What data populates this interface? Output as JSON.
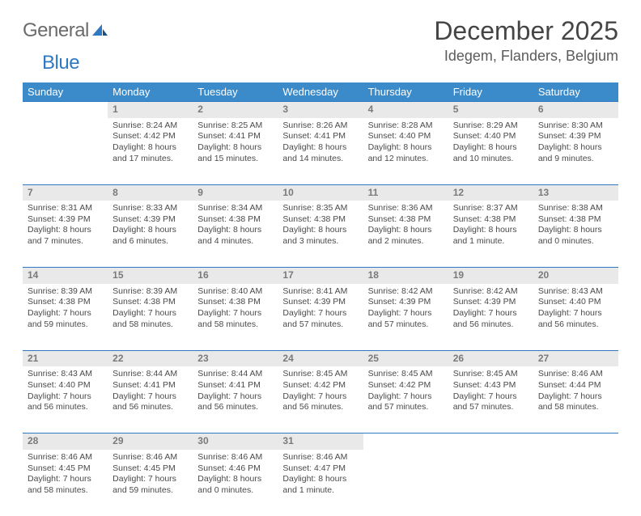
{
  "brand": {
    "word1": "General",
    "word2": "Blue",
    "accent": "#2f78c2"
  },
  "title": "December 2025",
  "location": "Idegem, Flanders, Belgium",
  "colors": {
    "header_bg": "#3b8aca",
    "header_text": "#ffffff",
    "row_border": "#2f78c2",
    "daynum_bg": "#e9e9e9",
    "daynum_text": "#7a7a7a",
    "body_text": "#4a4a4a"
  },
  "day_headers": [
    "Sunday",
    "Monday",
    "Tuesday",
    "Wednesday",
    "Thursday",
    "Friday",
    "Saturday"
  ],
  "weeks": [
    {
      "nums": [
        "",
        "1",
        "2",
        "3",
        "4",
        "5",
        "6"
      ],
      "cells": [
        null,
        {
          "sr": "Sunrise: 8:24 AM",
          "ss": "Sunset: 4:42 PM",
          "dl": "Daylight: 8 hours and 17 minutes."
        },
        {
          "sr": "Sunrise: 8:25 AM",
          "ss": "Sunset: 4:41 PM",
          "dl": "Daylight: 8 hours and 15 minutes."
        },
        {
          "sr": "Sunrise: 8:26 AM",
          "ss": "Sunset: 4:41 PM",
          "dl": "Daylight: 8 hours and 14 minutes."
        },
        {
          "sr": "Sunrise: 8:28 AM",
          "ss": "Sunset: 4:40 PM",
          "dl": "Daylight: 8 hours and 12 minutes."
        },
        {
          "sr": "Sunrise: 8:29 AM",
          "ss": "Sunset: 4:40 PM",
          "dl": "Daylight: 8 hours and 10 minutes."
        },
        {
          "sr": "Sunrise: 8:30 AM",
          "ss": "Sunset: 4:39 PM",
          "dl": "Daylight: 8 hours and 9 minutes."
        }
      ]
    },
    {
      "nums": [
        "7",
        "8",
        "9",
        "10",
        "11",
        "12",
        "13"
      ],
      "cells": [
        {
          "sr": "Sunrise: 8:31 AM",
          "ss": "Sunset: 4:39 PM",
          "dl": "Daylight: 8 hours and 7 minutes."
        },
        {
          "sr": "Sunrise: 8:33 AM",
          "ss": "Sunset: 4:39 PM",
          "dl": "Daylight: 8 hours and 6 minutes."
        },
        {
          "sr": "Sunrise: 8:34 AM",
          "ss": "Sunset: 4:38 PM",
          "dl": "Daylight: 8 hours and 4 minutes."
        },
        {
          "sr": "Sunrise: 8:35 AM",
          "ss": "Sunset: 4:38 PM",
          "dl": "Daylight: 8 hours and 3 minutes."
        },
        {
          "sr": "Sunrise: 8:36 AM",
          "ss": "Sunset: 4:38 PM",
          "dl": "Daylight: 8 hours and 2 minutes."
        },
        {
          "sr": "Sunrise: 8:37 AM",
          "ss": "Sunset: 4:38 PM",
          "dl": "Daylight: 8 hours and 1 minute."
        },
        {
          "sr": "Sunrise: 8:38 AM",
          "ss": "Sunset: 4:38 PM",
          "dl": "Daylight: 8 hours and 0 minutes."
        }
      ]
    },
    {
      "nums": [
        "14",
        "15",
        "16",
        "17",
        "18",
        "19",
        "20"
      ],
      "cells": [
        {
          "sr": "Sunrise: 8:39 AM",
          "ss": "Sunset: 4:38 PM",
          "dl": "Daylight: 7 hours and 59 minutes."
        },
        {
          "sr": "Sunrise: 8:39 AM",
          "ss": "Sunset: 4:38 PM",
          "dl": "Daylight: 7 hours and 58 minutes."
        },
        {
          "sr": "Sunrise: 8:40 AM",
          "ss": "Sunset: 4:38 PM",
          "dl": "Daylight: 7 hours and 58 minutes."
        },
        {
          "sr": "Sunrise: 8:41 AM",
          "ss": "Sunset: 4:39 PM",
          "dl": "Daylight: 7 hours and 57 minutes."
        },
        {
          "sr": "Sunrise: 8:42 AM",
          "ss": "Sunset: 4:39 PM",
          "dl": "Daylight: 7 hours and 57 minutes."
        },
        {
          "sr": "Sunrise: 8:42 AM",
          "ss": "Sunset: 4:39 PM",
          "dl": "Daylight: 7 hours and 56 minutes."
        },
        {
          "sr": "Sunrise: 8:43 AM",
          "ss": "Sunset: 4:40 PM",
          "dl": "Daylight: 7 hours and 56 minutes."
        }
      ]
    },
    {
      "nums": [
        "21",
        "22",
        "23",
        "24",
        "25",
        "26",
        "27"
      ],
      "cells": [
        {
          "sr": "Sunrise: 8:43 AM",
          "ss": "Sunset: 4:40 PM",
          "dl": "Daylight: 7 hours and 56 minutes."
        },
        {
          "sr": "Sunrise: 8:44 AM",
          "ss": "Sunset: 4:41 PM",
          "dl": "Daylight: 7 hours and 56 minutes."
        },
        {
          "sr": "Sunrise: 8:44 AM",
          "ss": "Sunset: 4:41 PM",
          "dl": "Daylight: 7 hours and 56 minutes."
        },
        {
          "sr": "Sunrise: 8:45 AM",
          "ss": "Sunset: 4:42 PM",
          "dl": "Daylight: 7 hours and 56 minutes."
        },
        {
          "sr": "Sunrise: 8:45 AM",
          "ss": "Sunset: 4:42 PM",
          "dl": "Daylight: 7 hours and 57 minutes."
        },
        {
          "sr": "Sunrise: 8:45 AM",
          "ss": "Sunset: 4:43 PM",
          "dl": "Daylight: 7 hours and 57 minutes."
        },
        {
          "sr": "Sunrise: 8:46 AM",
          "ss": "Sunset: 4:44 PM",
          "dl": "Daylight: 7 hours and 58 minutes."
        }
      ]
    },
    {
      "nums": [
        "28",
        "29",
        "30",
        "31",
        "",
        "",
        ""
      ],
      "cells": [
        {
          "sr": "Sunrise: 8:46 AM",
          "ss": "Sunset: 4:45 PM",
          "dl": "Daylight: 7 hours and 58 minutes."
        },
        {
          "sr": "Sunrise: 8:46 AM",
          "ss": "Sunset: 4:45 PM",
          "dl": "Daylight: 7 hours and 59 minutes."
        },
        {
          "sr": "Sunrise: 8:46 AM",
          "ss": "Sunset: 4:46 PM",
          "dl": "Daylight: 8 hours and 0 minutes."
        },
        {
          "sr": "Sunrise: 8:46 AM",
          "ss": "Sunset: 4:47 PM",
          "dl": "Daylight: 8 hours and 1 minute."
        },
        null,
        null,
        null
      ]
    }
  ]
}
